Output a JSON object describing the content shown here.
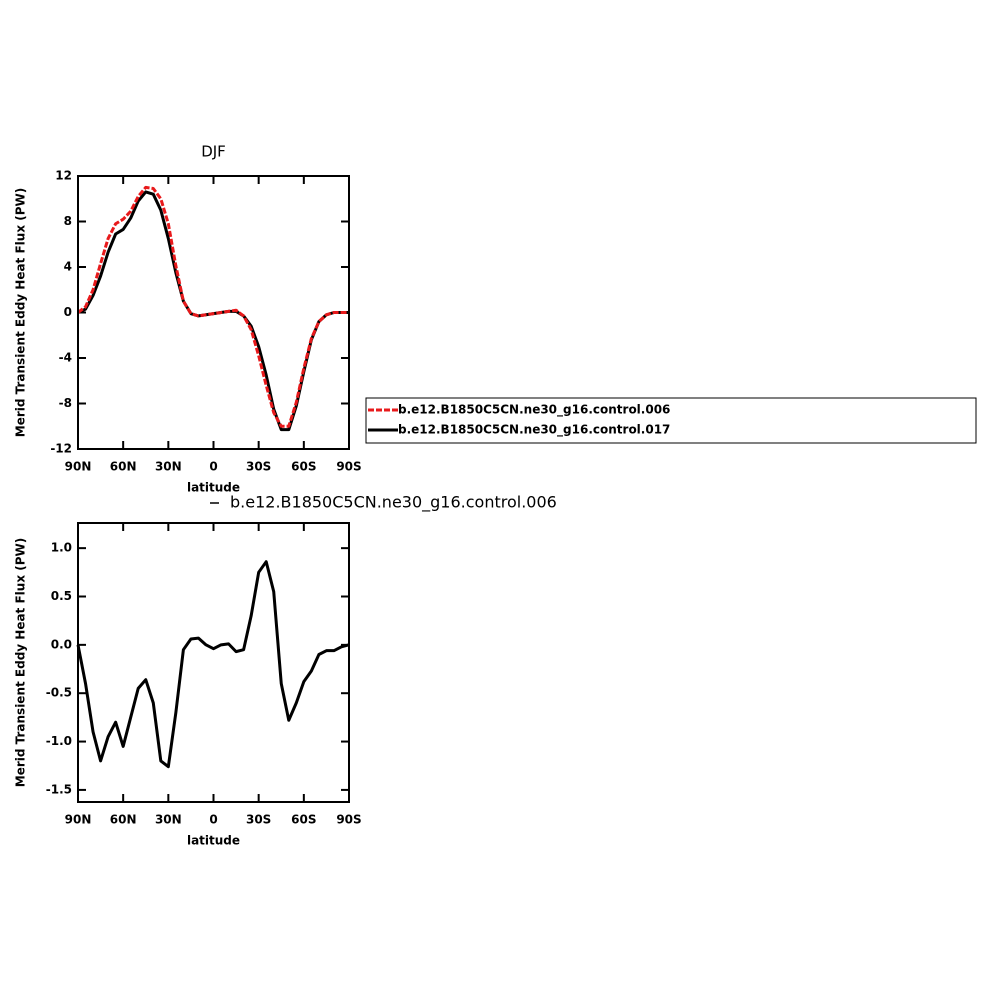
{
  "chart_data": [
    {
      "type": "line",
      "title": "DJF",
      "xlabel": "latitude",
      "ylabel": "Merid Transient Eddy Heat Flux (PW)",
      "x": [
        90,
        85,
        80,
        75,
        70,
        65,
        60,
        55,
        50,
        45,
        40,
        35,
        30,
        25,
        20,
        15,
        10,
        5,
        0,
        -5,
        -10,
        -15,
        -20,
        -25,
        -30,
        -35,
        -40,
        -45,
        -50,
        -55,
        -60,
        -65,
        -70,
        -75,
        -80,
        -85,
        -90
      ],
      "xlim": [
        90,
        -90
      ],
      "xticks": [
        {
          "value": 90,
          "label": "90N"
        },
        {
          "value": 60,
          "label": "60N"
        },
        {
          "value": 30,
          "label": "30N"
        },
        0,
        {
          "value": -30,
          "label": "30S"
        },
        {
          "value": -60,
          "label": "60S"
        },
        {
          "value": -90,
          "label": "90S"
        }
      ],
      "ylim": [
        -12,
        12
      ],
      "yticks": [
        -12,
        -8,
        -4,
        0,
        4,
        8,
        12
      ],
      "series": [
        {
          "name": "b.e12.B1850C5CN.ne30_g16.control.006",
          "color": "#e8191b",
          "line_style": "dashed",
          "values": [
            0,
            0.5,
            2.0,
            4.3,
            6.5,
            7.8,
            8.2,
            8.9,
            10.2,
            11.0,
            10.9,
            10.0,
            7.8,
            4.1,
            1.0,
            -0.1,
            -0.3,
            -0.2,
            -0.1,
            0,
            0.1,
            0.2,
            -0.3,
            -1.5,
            -3.8,
            -6.4,
            -8.8,
            -10.0,
            -10.0,
            -7.9,
            -4.9,
            -2.3,
            -0.8,
            -0.2,
            0,
            0,
            0
          ]
        },
        {
          "name": "b.e12.B1850C5CN.ne30_g16.control.017",
          "color": "#000000",
          "line_style": "solid",
          "values": [
            0,
            0.3,
            1.5,
            3.2,
            5.3,
            6.9,
            7.3,
            8.3,
            9.8,
            10.6,
            10.4,
            9.0,
            6.5,
            3.5,
            1.0,
            -0.1,
            -0.3,
            -0.2,
            -0.1,
            0,
            0.1,
            0.1,
            -0.3,
            -1.2,
            -3.0,
            -5.5,
            -8.5,
            -10.3,
            -10.3,
            -8.2,
            -5.2,
            -2.4,
            -0.8,
            -0.2,
            0,
            0,
            0
          ]
        }
      ]
    },
    {
      "type": "line",
      "xlabel": "latitude",
      "ylabel": "Merid Transient Eddy Heat Flux (PW)",
      "x": [
        90,
        85,
        80,
        75,
        70,
        65,
        60,
        55,
        50,
        45,
        40,
        35,
        30,
        25,
        20,
        15,
        10,
        5,
        0,
        -5,
        -10,
        -15,
        -20,
        -25,
        -30,
        -35,
        -40,
        -45,
        -50,
        -55,
        -60,
        -65,
        -70,
        -75,
        -80,
        -85,
        -90
      ],
      "xlim": [
        90,
        -90
      ],
      "xticks": [
        {
          "value": 90,
          "label": "90N"
        },
        {
          "value": 60,
          "label": "60N"
        },
        {
          "value": 30,
          "label": "30N"
        },
        0,
        {
          "value": -30,
          "label": "30S"
        },
        {
          "value": -60,
          "label": "60S"
        },
        {
          "value": -90,
          "label": "90S"
        }
      ],
      "ylim": [
        -1.625,
        1.26
      ],
      "yticks": [
        -1.5,
        {
          "value": -1,
          "label": "-1.0"
        },
        -0.5,
        {
          "value": 0,
          "label": "0.0"
        },
        0.5,
        {
          "value": 1,
          "label": "1.0"
        }
      ],
      "series": [
        {
          "name": "b.e12.B1850C5CN.ne30_g16.control.006",
          "color": "#000000",
          "line_style": "solid",
          "values": [
            0,
            -0.4,
            -0.9,
            -1.2,
            -0.95,
            -0.8,
            -1.05,
            -0.75,
            -0.45,
            -0.36,
            -0.6,
            -1.2,
            -1.26,
            -0.7,
            -0.05,
            0.06,
            0.07,
            0.0,
            -0.04,
            0.0,
            0.01,
            -0.07,
            -0.05,
            0.3,
            0.75,
            0.86,
            0.55,
            -0.4,
            -0.78,
            -0.6,
            -0.38,
            -0.27,
            -0.1,
            -0.06,
            -0.06,
            -0.02,
            0
          ]
        }
      ]
    }
  ]
}
